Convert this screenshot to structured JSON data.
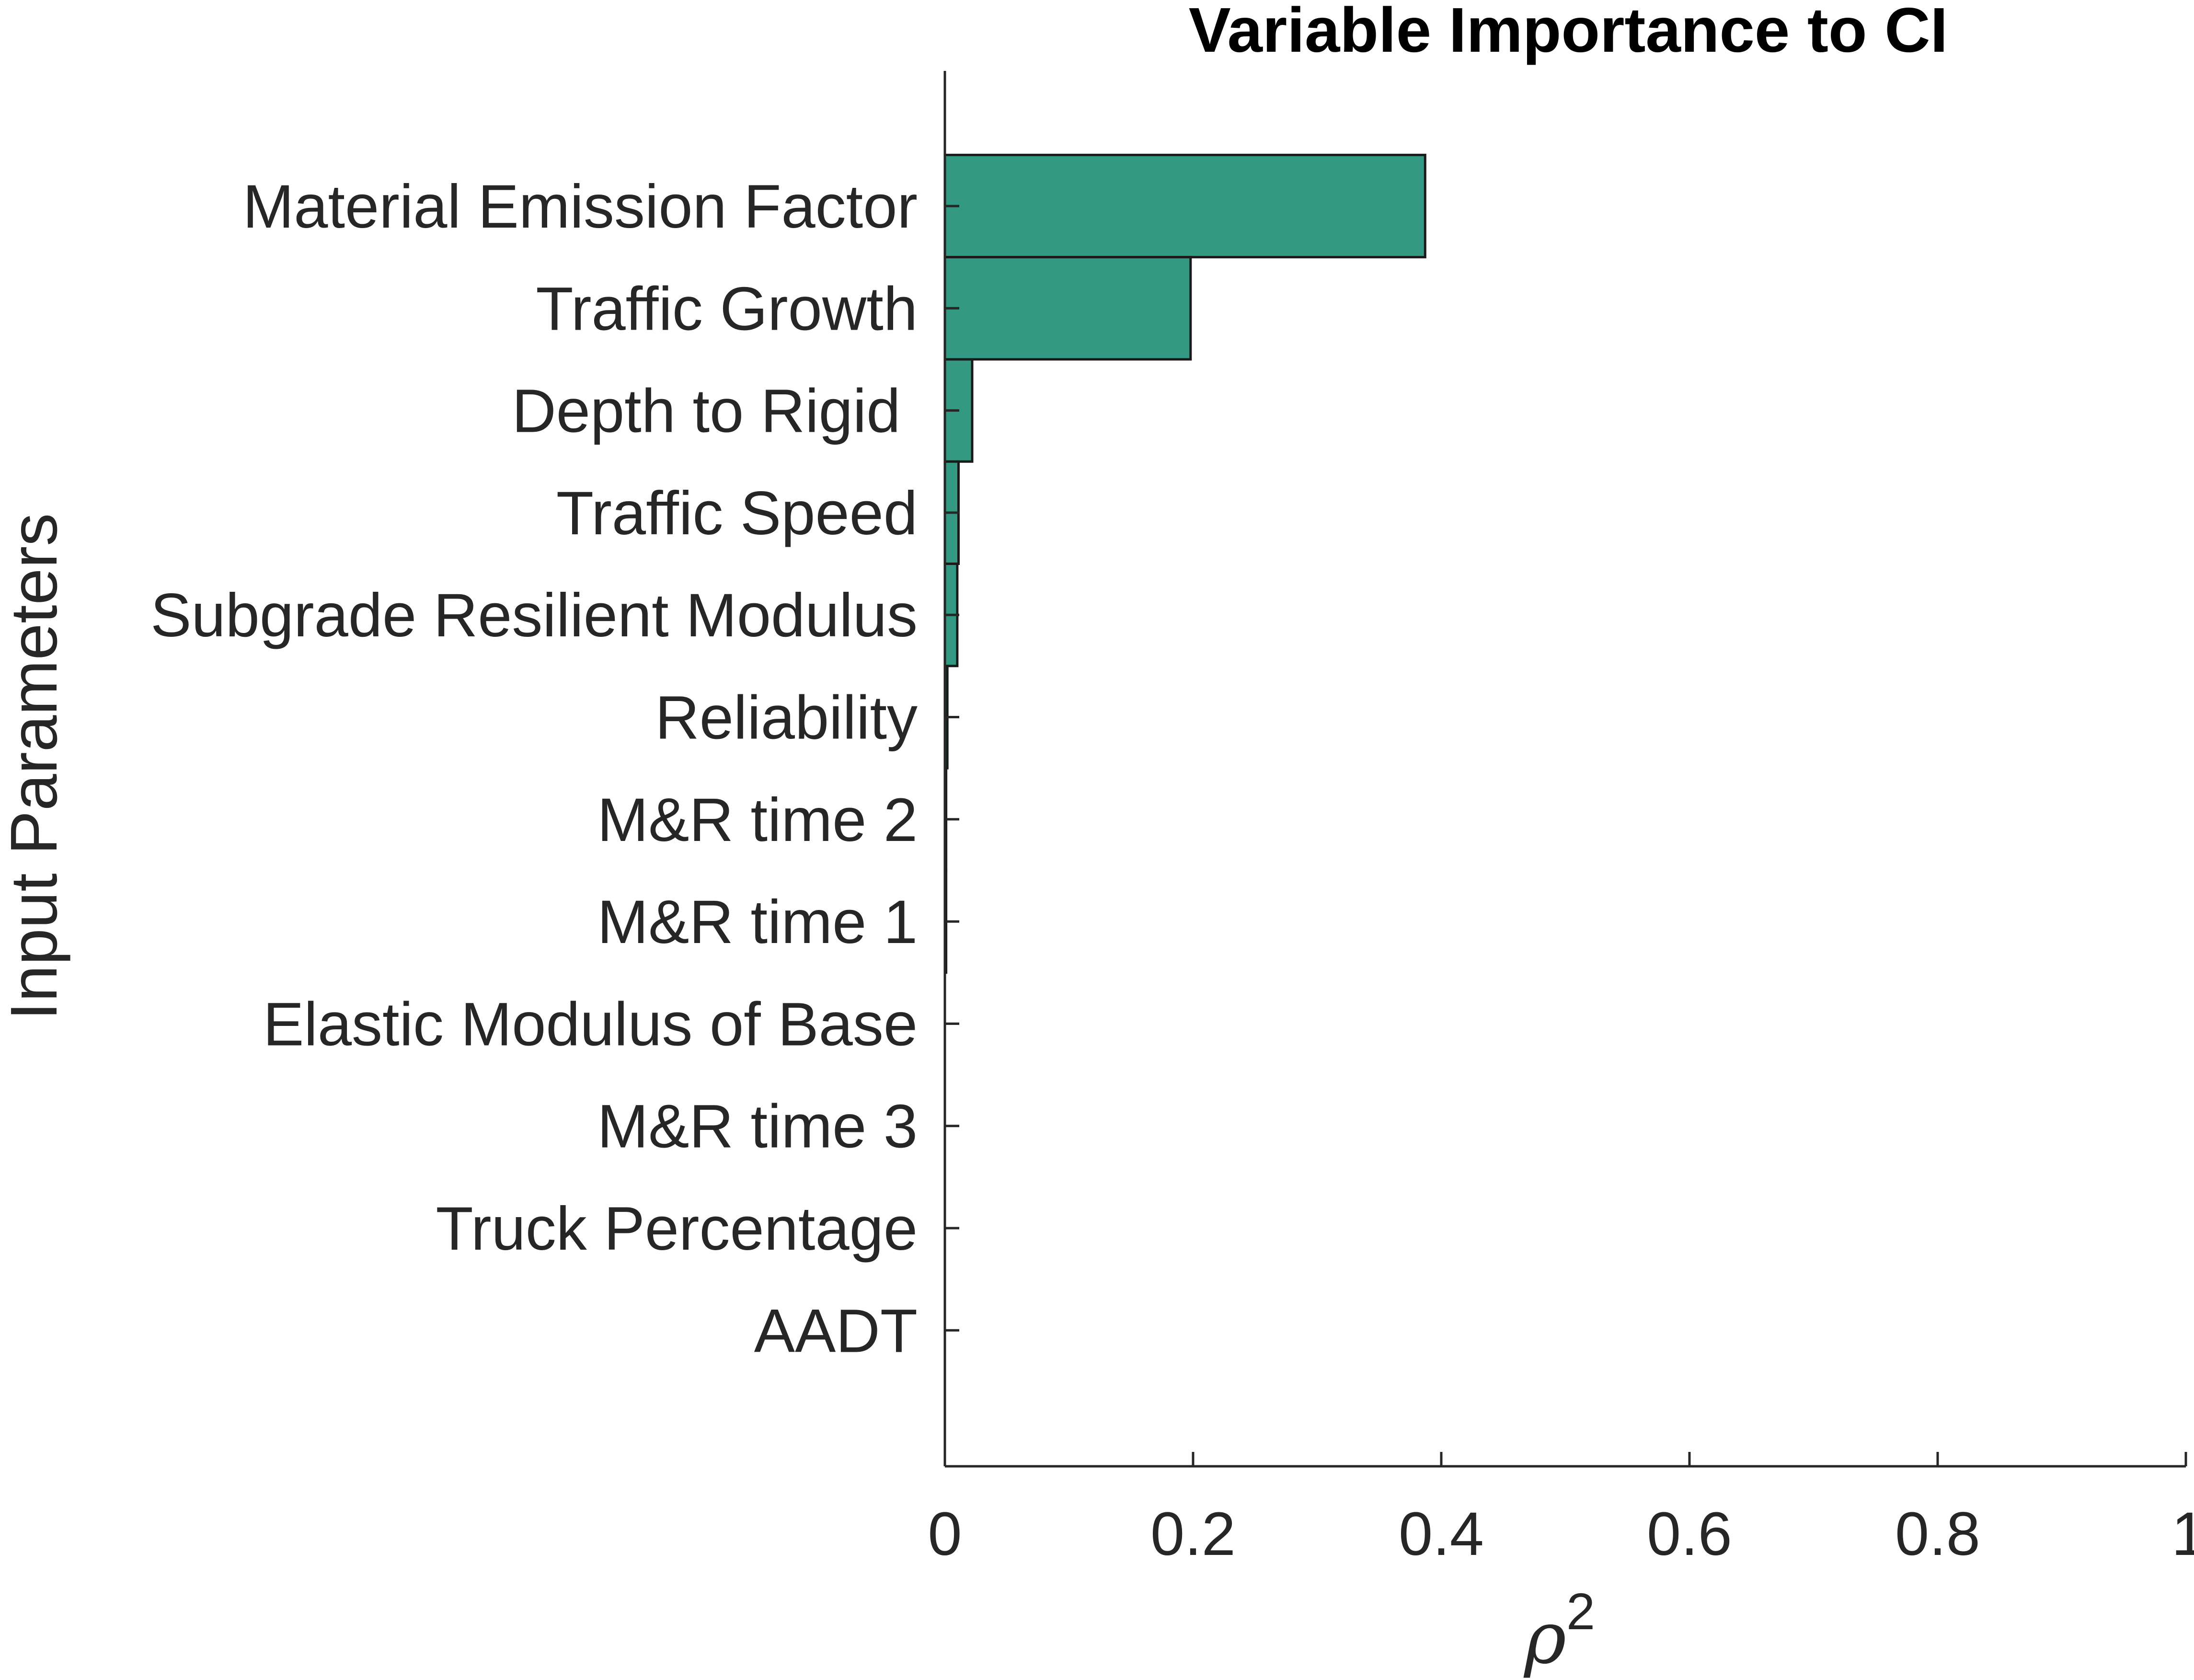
{
  "chart_data": {
    "type": "bar",
    "orientation": "horizontal",
    "title": "Variable Importance to CI",
    "ylabel": "Input Parameters",
    "xlabel": {
      "symbol": "ρ",
      "superscript": "2"
    },
    "xlim": [
      0,
      1
    ],
    "xticks": [
      0,
      0.2,
      0.4,
      0.6,
      0.8,
      1
    ],
    "xtick_labels": [
      "0",
      "0.2",
      "0.4",
      "0.6",
      "0.8",
      "1"
    ],
    "categories": [
      "Material Emission Factor",
      "Traffic Growth",
      "Depth to Rigid ",
      "Traffic Speed",
      "Subgrade Resilient Modulus",
      "Reliability",
      "M&R time 2",
      "M&R time 1",
      "Elastic Modulus of Base",
      "M&R time 3",
      "Truck Percentage",
      "AADT"
    ],
    "values": [
      0.387,
      0.198,
      0.022,
      0.011,
      0.01,
      0.002,
      0.001,
      0.001,
      0.0,
      0.0,
      0.0,
      0.0
    ],
    "bar_color": "#339982",
    "bar_edge_color": "#1a1a1a",
    "grid": false,
    "legend": "none"
  }
}
